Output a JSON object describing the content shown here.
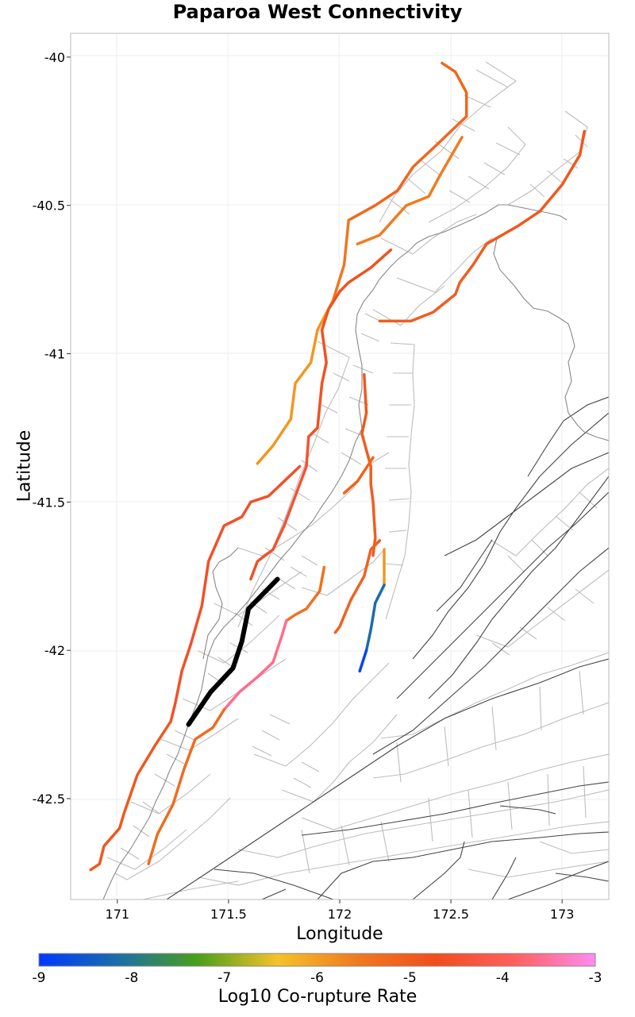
{
  "title": "Paparoa West Connectivity",
  "map": {
    "xlabel": "Longitude",
    "ylabel": "Latitude",
    "x_ticks": [
      "171",
      "171.5",
      "172",
      "172.5",
      "173"
    ],
    "y_ticks": [
      "-40",
      "-40.5",
      "-41",
      "-41.5",
      "-42",
      "-42.5"
    ],
    "xlim": [
      170.79,
      173.21
    ],
    "ylim": [
      -42.84,
      -39.92
    ]
  },
  "colorbar": {
    "label": "Log10 Co-rupture Rate",
    "ticks": [
      "-9",
      "-8",
      "-7",
      "-6",
      "-5",
      "-4",
      "-3"
    ],
    "range": [
      -9,
      -3
    ],
    "stops": [
      "#0038ff",
      "#1b6fa8",
      "#4a9f1a",
      "#f5c22a",
      "#f07a1e",
      "#f04e1e",
      "#ff6060",
      "#ff8cf0"
    ]
  },
  "chart_data": {
    "type": "map",
    "title": "Paparoa West Connectivity",
    "xlabel": "Longitude",
    "ylabel": "Latitude",
    "colorbar_label": "Log10 Co-rupture Rate",
    "colorbar_range": [
      -9,
      -3
    ],
    "source_section": {
      "name": "Paparoa West",
      "color": "#000000",
      "trace": [
        [
          171.32,
          -42.25
        ],
        [
          171.42,
          -42.14
        ],
        [
          171.52,
          -42.06
        ],
        [
          171.56,
          -41.97
        ],
        [
          171.59,
          -41.86
        ],
        [
          171.72,
          -41.76
        ]
      ]
    },
    "sections": [
      {
        "value": -5.2,
        "trace": [
          [
            172.46,
            -40.02
          ],
          [
            172.52,
            -40.05
          ],
          [
            172.57,
            -40.12
          ],
          [
            172.57,
            -40.2
          ],
          [
            172.43,
            -40.3
          ],
          [
            172.33,
            -40.37
          ],
          [
            172.26,
            -40.45
          ],
          [
            172.16,
            -40.5
          ],
          [
            172.04,
            -40.55
          ]
        ]
      },
      {
        "value": -5.6,
        "trace": [
          [
            172.55,
            -40.27
          ],
          [
            172.45,
            -40.4
          ],
          [
            172.4,
            -40.47
          ],
          [
            172.3,
            -40.5
          ],
          [
            172.18,
            -40.6
          ],
          [
            172.08,
            -40.63
          ]
        ]
      },
      {
        "value": -5.5,
        "trace": [
          [
            172.04,
            -40.55
          ],
          [
            172.02,
            -40.7
          ],
          [
            171.97,
            -40.82
          ]
        ]
      },
      {
        "value": -5.9,
        "trace": [
          [
            171.97,
            -40.82
          ],
          [
            171.9,
            -40.92
          ],
          [
            171.87,
            -41.03
          ],
          [
            171.8,
            -41.1
          ],
          [
            171.78,
            -41.22
          ],
          [
            171.7,
            -41.31
          ],
          [
            171.63,
            -41.37
          ]
        ]
      },
      {
        "value": -4.9,
        "trace": [
          [
            173.1,
            -40.25
          ],
          [
            173.08,
            -40.33
          ],
          [
            173.0,
            -40.43
          ],
          [
            172.9,
            -40.52
          ],
          [
            172.8,
            -40.57
          ],
          [
            172.66,
            -40.63
          ]
        ]
      },
      {
        "value": -5.0,
        "trace": [
          [
            172.66,
            -40.63
          ],
          [
            172.6,
            -40.7
          ],
          [
            172.54,
            -40.76
          ],
          [
            172.52,
            -40.8
          ],
          [
            172.42,
            -40.86
          ],
          [
            172.32,
            -40.89
          ],
          [
            172.18,
            -40.89
          ]
        ]
      },
      {
        "value": -4.8,
        "trace": [
          [
            172.23,
            -40.65
          ],
          [
            172.14,
            -40.71
          ],
          [
            172.04,
            -40.76
          ],
          [
            172.0,
            -40.79
          ],
          [
            171.95,
            -40.85
          ],
          [
            171.92,
            -40.92
          ],
          [
            171.94,
            -41.03
          ],
          [
            171.92,
            -41.1
          ],
          [
            171.9,
            -41.25
          ],
          [
            171.86,
            -41.28
          ]
        ]
      },
      {
        "value": -4.5,
        "trace": [
          [
            171.86,
            -41.28
          ],
          [
            171.85,
            -41.38
          ],
          [
            171.8,
            -41.48
          ],
          [
            171.75,
            -41.58
          ],
          [
            171.7,
            -41.66
          ]
        ]
      },
      {
        "value": -4.6,
        "trace": [
          [
            171.7,
            -41.66
          ],
          [
            171.63,
            -41.7
          ],
          [
            171.6,
            -41.76
          ]
        ]
      },
      {
        "value": -4.6,
        "trace": [
          [
            171.82,
            -41.38
          ],
          [
            171.75,
            -41.43
          ],
          [
            171.68,
            -41.48
          ],
          [
            171.6,
            -41.5
          ],
          [
            171.56,
            -41.55
          ],
          [
            171.48,
            -41.58
          ],
          [
            171.41,
            -41.7
          ],
          [
            171.38,
            -41.85
          ],
          [
            171.33,
            -41.98
          ],
          [
            171.29,
            -42.07
          ],
          [
            171.26,
            -42.18
          ],
          [
            171.24,
            -42.24
          ]
        ]
      },
      {
        "value": -4.9,
        "trace": [
          [
            171.24,
            -42.24
          ],
          [
            171.17,
            -42.32
          ],
          [
            171.09,
            -42.42
          ],
          [
            171.03,
            -42.55
          ],
          [
            171.01,
            -42.6
          ],
          [
            170.94,
            -42.66
          ],
          [
            170.92,
            -42.72
          ],
          [
            170.88,
            -42.74
          ]
        ]
      },
      {
        "value": -4.9,
        "trace": [
          [
            172.11,
            -41.07
          ],
          [
            172.12,
            -41.2
          ],
          [
            172.1,
            -41.27
          ]
        ]
      },
      {
        "value": -5.0,
        "trace": [
          [
            172.1,
            -41.27
          ],
          [
            172.14,
            -41.38
          ],
          [
            172.14,
            -41.44
          ],
          [
            172.15,
            -41.5
          ],
          [
            172.16,
            -41.62
          ],
          [
            172.15,
            -41.68
          ]
        ]
      },
      {
        "value": -5.1,
        "trace": [
          [
            172.15,
            -41.35
          ],
          [
            172.08,
            -41.43
          ],
          [
            172.02,
            -41.47
          ]
        ]
      },
      {
        "value": -5.4,
        "trace": [
          [
            171.93,
            -41.72
          ],
          [
            171.91,
            -41.8
          ],
          [
            171.85,
            -41.86
          ],
          [
            171.8,
            -41.88
          ],
          [
            171.76,
            -41.9
          ]
        ]
      },
      {
        "value": -3.6,
        "trace": [
          [
            171.76,
            -41.9
          ],
          [
            171.74,
            -41.95
          ],
          [
            171.7,
            -42.04
          ],
          [
            171.63,
            -42.09
          ],
          [
            171.55,
            -42.14
          ],
          [
            171.48,
            -42.2
          ]
        ]
      },
      {
        "value": -5.3,
        "trace": [
          [
            171.48,
            -42.2
          ],
          [
            171.43,
            -42.26
          ],
          [
            171.35,
            -42.3
          ],
          [
            171.3,
            -42.4
          ],
          [
            171.25,
            -42.52
          ],
          [
            171.18,
            -42.62
          ],
          [
            171.14,
            -42.72
          ]
        ]
      },
      {
        "value": -5.1,
        "trace": [
          [
            172.18,
            -41.63
          ],
          [
            172.14,
            -41.66
          ],
          [
            172.11,
            -41.75
          ],
          [
            172.05,
            -41.83
          ],
          [
            172.0,
            -41.92
          ],
          [
            171.98,
            -41.94
          ]
        ]
      },
      {
        "value": -5.9,
        "trace": [
          [
            172.2,
            -41.66
          ],
          [
            172.2,
            -41.78
          ]
        ]
      },
      {
        "value": -8.2,
        "trace": [
          [
            172.2,
            -41.78
          ],
          [
            172.16,
            -41.84
          ],
          [
            172.14,
            -41.93
          ],
          [
            172.12,
            -42.0
          ]
        ]
      },
      {
        "value": -8.8,
        "trace": [
          [
            172.12,
            -42.0
          ],
          [
            172.09,
            -42.07
          ]
        ]
      }
    ]
  }
}
